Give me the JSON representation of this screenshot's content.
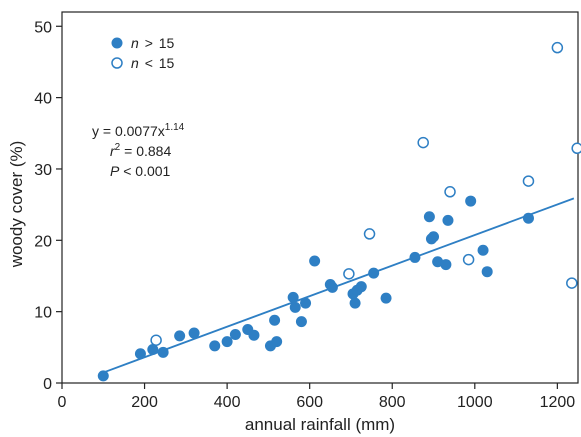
{
  "chart_data": {
    "type": "scatter",
    "xlabel": "annual rainfall (mm)",
    "ylabel": "woody cover (%)",
    "xlim": [
      0,
      1250
    ],
    "ylim": [
      0,
      52
    ],
    "xticks": [
      0,
      200,
      400,
      600,
      800,
      1000,
      1200
    ],
    "yticks": [
      0,
      10,
      20,
      30,
      40,
      50
    ],
    "grid": false,
    "legend_position": "top-left",
    "colors": {
      "filled": "#2e7fc4",
      "open_stroke": "#2e7fc4",
      "fit_line": "#2e7fc4",
      "axis": "#222222"
    },
    "legend": [
      {
        "var": "n",
        "op": ">",
        "val": "15",
        "marker": "filled"
      },
      {
        "var": "n",
        "op": "<",
        "val": "15",
        "marker": "open"
      }
    ],
    "annotation": {
      "eq_base": "y = 0.0077x",
      "eq_exp": "1.14",
      "r2_var": "r",
      "r2_exp": "2",
      "r2_rest": " = 0.884",
      "p_var": "P",
      "p_rest": " < 0.001"
    },
    "fit": {
      "a": 0.0077,
      "b": 1.14,
      "x_from": 100,
      "x_to": 1240
    },
    "series": [
      {
        "marker": "filled",
        "points": [
          [
            100,
            1.0
          ],
          [
            190,
            4.1
          ],
          [
            220,
            4.7
          ],
          [
            245,
            4.3
          ],
          [
            285,
            6.6
          ],
          [
            320,
            7.0
          ],
          [
            370,
            5.2
          ],
          [
            400,
            5.8
          ],
          [
            420,
            6.8
          ],
          [
            450,
            7.5
          ],
          [
            465,
            6.7
          ],
          [
            505,
            5.2
          ],
          [
            515,
            8.8
          ],
          [
            520,
            5.8
          ],
          [
            560,
            12.0
          ],
          [
            565,
            10.6
          ],
          [
            580,
            8.6
          ],
          [
            590,
            11.2
          ],
          [
            612,
            17.1
          ],
          [
            650,
            13.8
          ],
          [
            655,
            13.4
          ],
          [
            705,
            12.5
          ],
          [
            710,
            11.2
          ],
          [
            715,
            13.0
          ],
          [
            725,
            13.5
          ],
          [
            755,
            15.4
          ],
          [
            785,
            11.9
          ],
          [
            855,
            17.6
          ],
          [
            890,
            23.3
          ],
          [
            895,
            20.2
          ],
          [
            900,
            20.5
          ],
          [
            910,
            17.0
          ],
          [
            930,
            16.6
          ],
          [
            935,
            22.8
          ],
          [
            990,
            25.5
          ],
          [
            1020,
            18.6
          ],
          [
            1030,
            15.6
          ],
          [
            1130,
            23.1
          ]
        ]
      },
      {
        "marker": "open",
        "points": [
          [
            228,
            6.0
          ],
          [
            695,
            15.3
          ],
          [
            745,
            20.9
          ],
          [
            875,
            33.7
          ],
          [
            940,
            26.8
          ],
          [
            985,
            17.3
          ],
          [
            1130,
            28.3
          ],
          [
            1200,
            47.0
          ],
          [
            1235,
            14.0
          ],
          [
            1248,
            32.9
          ]
        ]
      }
    ]
  }
}
